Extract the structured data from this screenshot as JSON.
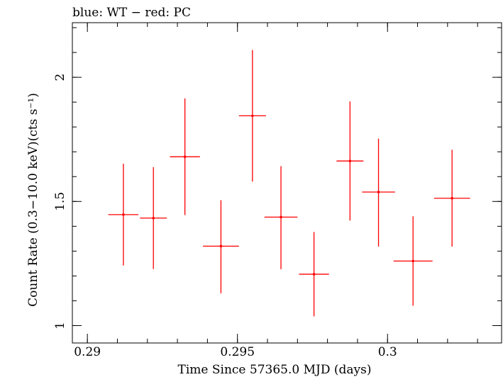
{
  "chart_data": {
    "type": "scatter",
    "title": "blue: WT − red: PC",
    "xlabel": "Time Since 57365.0 MJD (days)",
    "ylabel": "Count Rate (0.3−10.0 keV)(cts s⁻¹)",
    "xlim": [
      0.2895,
      0.3038
    ],
    "ylim": [
      0.93,
      2.22
    ],
    "x_ticks": [
      0.29,
      0.295,
      0.3
    ],
    "x_tick_labels": [
      "0.29",
      "0.295",
      "0.3"
    ],
    "y_ticks": [
      1.0,
      1.5,
      2.0
    ],
    "y_tick_labels": [
      "1",
      "1.5",
      "2"
    ],
    "x_minor_step": 0.001,
    "y_minor_step": 0.1,
    "grid": false,
    "series": [
      {
        "color": "#ff0000",
        "points": [
          {
            "x": 0.2912,
            "y": 1.447,
            "xerr": 0.0005,
            "yerr_lo": 0.205,
            "yerr_hi": 0.205
          },
          {
            "x": 0.2922,
            "y": 1.433,
            "xerr": 0.00045,
            "yerr_lo": 0.205,
            "yerr_hi": 0.205
          },
          {
            "x": 0.29325,
            "y": 1.68,
            "xerr": 0.0005,
            "yerr_lo": 0.235,
            "yerr_hi": 0.235
          },
          {
            "x": 0.29445,
            "y": 1.32,
            "xerr": 0.0006,
            "yerr_lo": 0.19,
            "yerr_hi": 0.185
          },
          {
            "x": 0.2955,
            "y": 1.845,
            "xerr": 0.00045,
            "yerr_lo": 0.265,
            "yerr_hi": 0.265
          },
          {
            "x": 0.29645,
            "y": 1.437,
            "xerr": 0.00055,
            "yerr_lo": 0.21,
            "yerr_hi": 0.205
          },
          {
            "x": 0.29755,
            "y": 1.207,
            "xerr": 0.0005,
            "yerr_lo": 0.17,
            "yerr_hi": 0.17
          },
          {
            "x": 0.29875,
            "y": 1.663,
            "xerr": 0.00045,
            "yerr_lo": 0.24,
            "yerr_hi": 0.24
          },
          {
            "x": 0.2997,
            "y": 1.538,
            "xerr": 0.00055,
            "yerr_lo": 0.22,
            "yerr_hi": 0.215
          },
          {
            "x": 0.30085,
            "y": 1.26,
            "xerr": 0.00065,
            "yerr_lo": 0.18,
            "yerr_hi": 0.18
          },
          {
            "x": 0.30215,
            "y": 1.513,
            "xerr": 0.0006,
            "yerr_lo": 0.195,
            "yerr_hi": 0.195
          }
        ]
      }
    ]
  }
}
